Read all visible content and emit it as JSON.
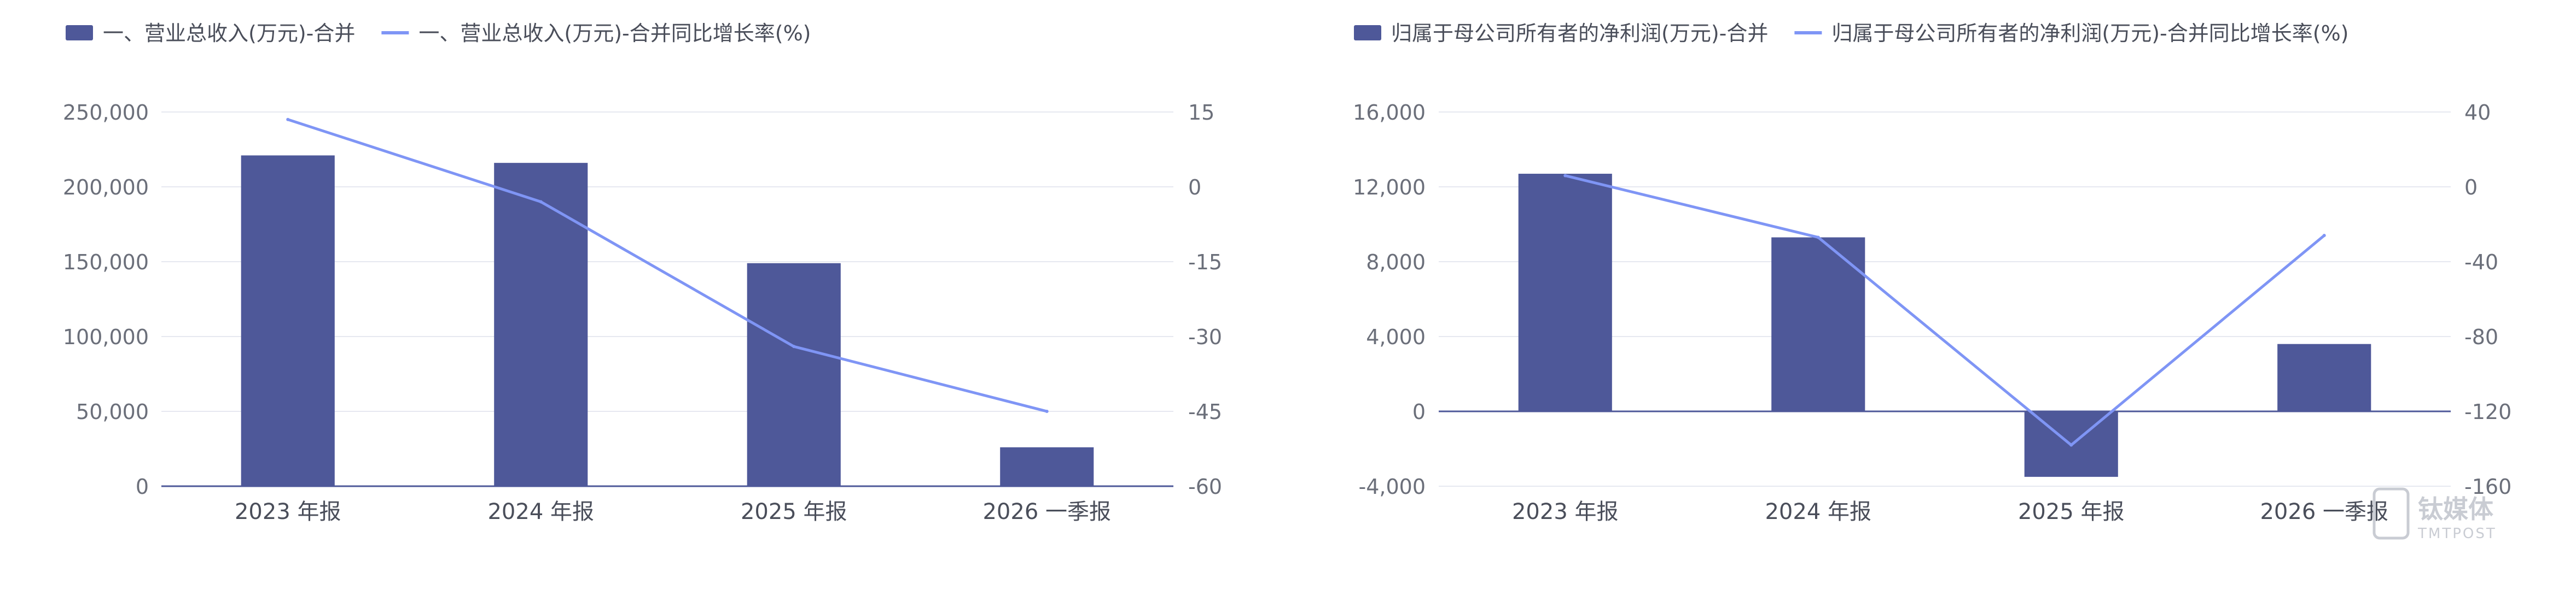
{
  "chart_data": [
    {
      "type": "bar",
      "categories": [
        "2023 年报",
        "2024 年报",
        "2025 年报",
        "2026 一季报"
      ],
      "series": [
        {
          "name": "一、营业总收入(万元)-合并",
          "type": "bar",
          "axis": "left",
          "values": [
            221000,
            216000,
            149000,
            26000
          ]
        },
        {
          "name": "一、营业总收入(万元)-合并同比增长率(%)",
          "type": "line",
          "axis": "right",
          "values": [
            13.5,
            -3,
            -32,
            -45
          ]
        }
      ],
      "left_axis": {
        "min": 0,
        "max": 250000,
        "ticks": [
          "0",
          "50,000",
          "100,000",
          "150,000",
          "200,000",
          "250,000"
        ]
      },
      "right_axis": {
        "min": -60,
        "max": 15,
        "ticks": [
          "-60",
          "-45",
          "-30",
          "-15",
          "0",
          "15"
        ]
      },
      "legend_position": "top-left",
      "colors": {
        "bar": "#4e5899",
        "line": "#7f95f5"
      }
    },
    {
      "type": "bar",
      "categories": [
        "2023 年报",
        "2024 年报",
        "2025 年报",
        "2026 一季报"
      ],
      "series": [
        {
          "name": "归属于母公司所有者的净利润(万元)-合并",
          "type": "bar",
          "axis": "left",
          "values": [
            12700,
            9300,
            -3500,
            3600
          ]
        },
        {
          "name": "归属于母公司所有者的净利润(万元)-合并同比增长率(%)",
          "type": "line",
          "axis": "right",
          "values": [
            6,
            -27,
            -138,
            -26
          ]
        }
      ],
      "left_axis": {
        "min": -4000,
        "max": 16000,
        "ticks": [
          "-4,000",
          "0",
          "4,000",
          "8,000",
          "12,000",
          "16,000"
        ]
      },
      "right_axis": {
        "min": -160,
        "max": 40,
        "ticks": [
          "-160",
          "-120",
          "-80",
          "-40",
          "0",
          "40"
        ]
      },
      "legend_position": "top-left",
      "colors": {
        "bar": "#4e5899",
        "line": "#7f95f5"
      }
    }
  ],
  "watermark": {
    "brand": "钛媒体",
    "sub": "TMTPOST"
  }
}
